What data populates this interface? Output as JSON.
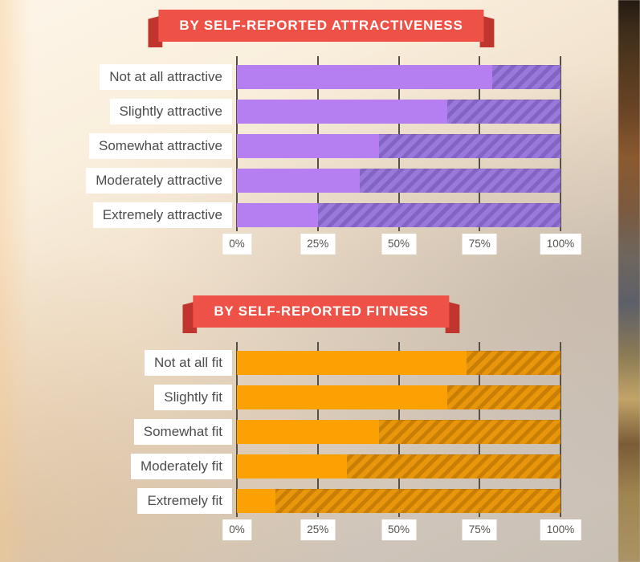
{
  "accent_colors": {
    "ribbon_red": "#ee5247",
    "ribbon_fold_red": "#c0362e",
    "purple_solid": "#b57ff2",
    "purple_hatch_base": "#9a79dd",
    "purple_hatch_stripe": "#8464c3",
    "orange_solid": "#fca103",
    "orange_hatch_base": "#e9970a",
    "orange_hatch_stripe": "#c97f05",
    "gridline": "#55504a",
    "label_chip_bg": "#ffffff",
    "label_text": "#4c4c4e"
  },
  "chart_data": [
    {
      "type": "bar",
      "orientation": "horizontal",
      "stacked": true,
      "title": "BY SELF-REPORTED ATTRACTIVENESS",
      "categories": [
        "Not at all attractive",
        "Slightly attractive",
        "Somewhat attractive",
        "Moderately attractive",
        "Extremely attractive"
      ],
      "series": [
        {
          "name": "solid",
          "values": [
            79,
            65,
            44,
            38,
            25
          ]
        },
        {
          "name": "hatched",
          "values": [
            21,
            35,
            56,
            62,
            75
          ]
        }
      ],
      "xlim": [
        0,
        100
      ],
      "x_tick_values": [
        0,
        25,
        50,
        75,
        100
      ],
      "x_tick_labels": [
        "0%",
        "25%",
        "50%",
        "75%",
        "100%"
      ],
      "grid": true,
      "legend": "none",
      "colors": {
        "solid": "#b57ff2",
        "hatch_base": "#9a79dd",
        "hatch_stripe": "#8464c3"
      }
    },
    {
      "type": "bar",
      "orientation": "horizontal",
      "stacked": true,
      "title": "BY SELF-REPORTED FITNESS",
      "categories": [
        "Not at all fit",
        "Slightly fit",
        "Somewhat fit",
        "Moderately fit",
        "Extremely fit"
      ],
      "series": [
        {
          "name": "solid",
          "values": [
            71,
            65,
            44,
            34,
            12
          ]
        },
        {
          "name": "hatched",
          "values": [
            29,
            35,
            56,
            66,
            88
          ]
        }
      ],
      "xlim": [
        0,
        100
      ],
      "x_tick_values": [
        0,
        25,
        50,
        75,
        100
      ],
      "x_tick_labels": [
        "0%",
        "25%",
        "50%",
        "75%",
        "100%"
      ],
      "grid": true,
      "legend": "none",
      "colors": {
        "solid": "#fca103",
        "hatch_base": "#e9970a",
        "hatch_stripe": "#c97f05"
      }
    }
  ]
}
